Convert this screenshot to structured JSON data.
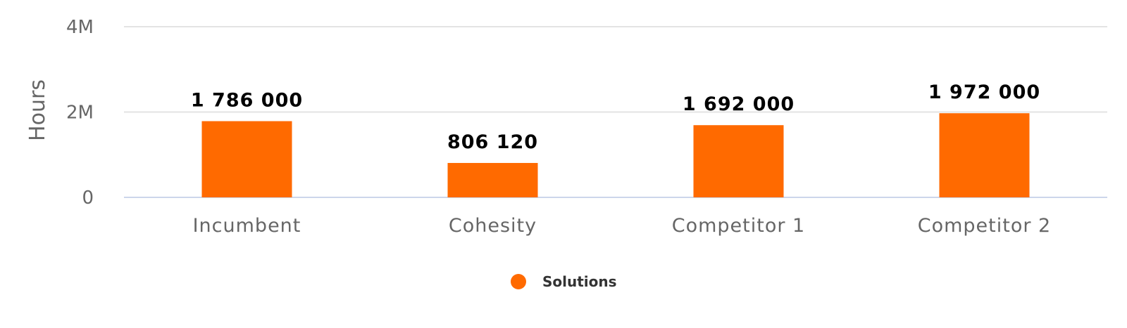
{
  "chart_data": {
    "type": "bar",
    "title": "",
    "xlabel": "",
    "ylabel": "Hours",
    "categories": [
      "Incumbent",
      "Cohesity",
      "Competitor 1",
      "Competitor 2"
    ],
    "series": [
      {
        "name": "Solutions",
        "values": [
          1786000,
          806120,
          1692000,
          1972000
        ],
        "data_labels": [
          "1 786 000",
          "806 120",
          "1 692 000",
          "1 972 000"
        ],
        "color": "#ff6a00"
      }
    ],
    "ylim": [
      0,
      4000000
    ],
    "yticks": [
      0,
      2000000,
      4000000
    ],
    "ytick_labels": [
      "0",
      "2M",
      "4M"
    ],
    "grid": true,
    "legend": "bottom-center"
  }
}
